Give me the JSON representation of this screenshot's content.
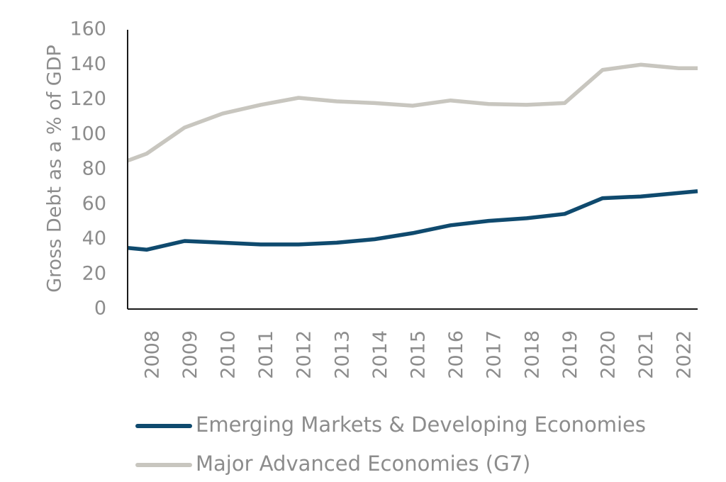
{
  "chart_data": {
    "type": "line",
    "title": "",
    "xlabel": "",
    "ylabel": "Gross Debt as a % of GDP",
    "ylim": [
      0,
      160
    ],
    "yticks": [
      "0",
      "20",
      "40",
      "60",
      "80",
      "100",
      "120",
      "140",
      "160"
    ],
    "categories": [
      "2008",
      "2009",
      "2010",
      "2011",
      "2012",
      "2013",
      "2014",
      "2015",
      "2016",
      "2017",
      "2018",
      "2019",
      "2020",
      "2021",
      "2022"
    ],
    "x": [
      2007.5,
      2008,
      2009,
      2010,
      2011,
      2012,
      2013,
      2014,
      2015,
      2016,
      2017,
      2018,
      2019,
      2020,
      2021,
      2022,
      2022.5
    ],
    "series": [
      {
        "name": "Emerging Markets & Developing Economies",
        "color": "#0f4a6e",
        "values": [
          35,
          34,
          39,
          38,
          37,
          37,
          38,
          40,
          43.5,
          48,
          50.5,
          52,
          54.5,
          63.5,
          64.5,
          66.5,
          67.5
        ]
      },
      {
        "name": "Major Advanced Economies (G7)",
        "color": "#c8c6bf",
        "values": [
          85,
          89,
          104,
          112,
          117,
          121,
          119,
          118,
          116.5,
          119.5,
          117.5,
          117,
          118,
          137,
          140,
          138,
          138
        ]
      }
    ],
    "grid": false,
    "legend_position": "bottom"
  },
  "axis_color": "#1a1a1a",
  "text_color": "#8c8c8c"
}
